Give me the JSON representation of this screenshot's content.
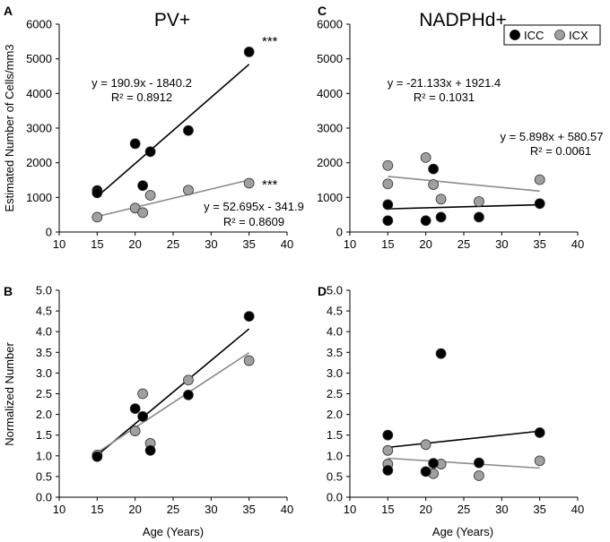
{
  "chart_data": [
    {
      "panel": "A",
      "title": "PV+",
      "type": "scatter",
      "xlabel": "",
      "ylabel": "Estimated Number of Cells/mm3",
      "xlim": [
        10,
        40
      ],
      "ylim": [
        0,
        6000
      ],
      "xticks": [
        "10",
        "15",
        "20",
        "25",
        "30",
        "35",
        "40"
      ],
      "yticks": [
        "0",
        "1000",
        "2000",
        "3000",
        "4000",
        "5000",
        "6000"
      ],
      "series": [
        {
          "name": "ICC",
          "color": "#000000",
          "points": [
            [
              15,
              1200
            ],
            [
              15,
              1130
            ],
            [
              20,
              2550
            ],
            [
              21,
              1340
            ],
            [
              22,
              2320
            ],
            [
              27,
              2930
            ],
            [
              35,
              5200
            ]
          ],
          "fit": {
            "slope": 190.9,
            "intercept": -1840.2,
            "line_color": "#000000"
          },
          "equation": "y = 190.9x - 1840.2",
          "r2": "R² = 0.8912",
          "sig": "***"
        },
        {
          "name": "ICX",
          "color": "#a0a0a0",
          "points": [
            [
              15,
              430
            ],
            [
              20,
              690
            ],
            [
              21,
              560
            ],
            [
              22,
              1060
            ],
            [
              27,
              1210
            ],
            [
              35,
              1410
            ]
          ],
          "fit": {
            "slope": 52.695,
            "intercept": -341.9,
            "line_color": "#8c8c8c"
          },
          "equation": "y = 52.695x - 341.9",
          "r2": "R² = 0.8609",
          "sig": "***"
        }
      ]
    },
    {
      "panel": "B",
      "title": "",
      "type": "scatter",
      "xlabel": "Age (Years)",
      "ylabel": "Normalized Number",
      "xlim": [
        10,
        40
      ],
      "ylim": [
        0,
        5
      ],
      "xticks": [
        "10",
        "15",
        "20",
        "25",
        "30",
        "35",
        "40"
      ],
      "yticks": [
        "0.0",
        "0.5",
        "1.0",
        "1.5",
        "2.0",
        "2.5",
        "3.0",
        "3.5",
        "4.0",
        "4.5",
        "5.0"
      ],
      "series": [
        {
          "name": "ICC",
          "color": "#000000",
          "points": [
            [
              15,
              0.98
            ],
            [
              20,
              2.14
            ],
            [
              21,
              1.95
            ],
            [
              22,
              1.13
            ],
            [
              27,
              2.47
            ],
            [
              35,
              4.37
            ]
          ],
          "fit": {
            "slope": 0.1528,
            "intercept": -1.28,
            "line_color": "#000000"
          }
        },
        {
          "name": "ICX",
          "color": "#a0a0a0",
          "points": [
            [
              15,
              1.02
            ],
            [
              20,
              1.6
            ],
            [
              21,
              2.5
            ],
            [
              22,
              1.3
            ],
            [
              27,
              2.83
            ],
            [
              35,
              3.3
            ]
          ],
          "fit": {
            "slope": 0.1206,
            "intercept": -0.73,
            "line_color": "#8c8c8c"
          }
        }
      ]
    },
    {
      "panel": "C",
      "title": "NADPHd+",
      "type": "scatter",
      "xlabel": "",
      "ylabel": "",
      "xlim": [
        10,
        40
      ],
      "ylim": [
        0,
        6000
      ],
      "xticks": [
        "10",
        "15",
        "20",
        "25",
        "30",
        "35",
        "40"
      ],
      "yticks": [
        "0",
        "1000",
        "2000",
        "3000",
        "4000",
        "5000",
        "6000"
      ],
      "legend": {
        "position": "top-right",
        "entries": [
          "ICC",
          "ICX"
        ]
      },
      "series": [
        {
          "name": "ICC",
          "color": "#000000",
          "points": [
            [
              15,
              330
            ],
            [
              15,
              790
            ],
            [
              20,
              330
            ],
            [
              21,
              1820
            ],
            [
              22,
              430
            ],
            [
              27,
              430
            ],
            [
              35,
              820
            ]
          ],
          "fit": {
            "slope": 5.898,
            "intercept": 580.57,
            "line_color": "#000000"
          },
          "equation": "y = 5.898x + 580.57",
          "r2": "R² = 0.0061"
        },
        {
          "name": "ICX",
          "color": "#a0a0a0",
          "points": [
            [
              15,
              1920
            ],
            [
              15,
              1390
            ],
            [
              20,
              2150
            ],
            [
              21,
              1370
            ],
            [
              22,
              950
            ],
            [
              27,
              880
            ],
            [
              35,
              1510
            ]
          ],
          "fit": {
            "slope": -21.133,
            "intercept": 1921.4,
            "line_color": "#8c8c8c"
          },
          "equation": "y = -21.133x + 1921.4",
          "r2": "R² = 0.1031"
        }
      ]
    },
    {
      "panel": "D",
      "title": "",
      "type": "scatter",
      "xlabel": "Age (Years)",
      "ylabel": "",
      "xlim": [
        10,
        40
      ],
      "ylim": [
        0,
        5
      ],
      "xticks": [
        "10",
        "15",
        "20",
        "25",
        "30",
        "35",
        "40"
      ],
      "yticks": [
        "0.0",
        "0.5",
        "1.0",
        "1.5",
        "2.0",
        "2.5",
        "3.0",
        "3.5",
        "4.0",
        "4.5",
        "5.0"
      ],
      "series": [
        {
          "name": "ICC",
          "color": "#000000",
          "points": [
            [
              15,
              1.5
            ],
            [
              15,
              0.65
            ],
            [
              20,
              0.62
            ],
            [
              21,
              0.82
            ],
            [
              22,
              3.47
            ],
            [
              27,
              0.83
            ],
            [
              35,
              1.56
            ]
          ],
          "fit": {
            "slope": 0.0196,
            "intercept": 0.91,
            "line_color": "#000000"
          }
        },
        {
          "name": "ICX",
          "color": "#a0a0a0",
          "points": [
            [
              15,
              1.13
            ],
            [
              15,
              0.8
            ],
            [
              20,
              1.27
            ],
            [
              21,
              0.57
            ],
            [
              22,
              0.8
            ],
            [
              27,
              0.52
            ],
            [
              35,
              0.88
            ]
          ],
          "fit": {
            "slope": -0.0119,
            "intercept": 1.12,
            "line_color": "#8c8c8c"
          }
        }
      ]
    }
  ]
}
